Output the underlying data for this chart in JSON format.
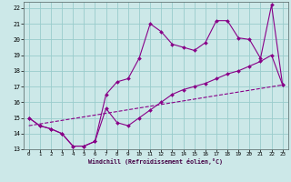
{
  "xlabel": "Windchill (Refroidissement éolien,°C)",
  "bg_color": "#cce8e8",
  "grid_color": "#99cccc",
  "line_color": "#880088",
  "xmin": -0.5,
  "xmax": 23.5,
  "ymin": 13,
  "ymax": 22.4,
  "x_ticks": [
    0,
    1,
    2,
    3,
    4,
    5,
    6,
    7,
    8,
    9,
    10,
    11,
    12,
    13,
    14,
    15,
    16,
    17,
    18,
    19,
    20,
    21,
    22,
    23
  ],
  "y_ticks": [
    13,
    14,
    15,
    16,
    17,
    18,
    19,
    20,
    21,
    22
  ],
  "series1_x": [
    0,
    1,
    2,
    3,
    4,
    5,
    6,
    7,
    8,
    9,
    10,
    11,
    12,
    13,
    14,
    15,
    16,
    17,
    18,
    19,
    20,
    21,
    22,
    23
  ],
  "series1_y": [
    15.0,
    14.5,
    14.3,
    14.0,
    13.2,
    13.2,
    13.5,
    15.6,
    14.7,
    14.5,
    15.0,
    15.5,
    16.0,
    16.5,
    16.8,
    17.0,
    17.2,
    17.5,
    17.8,
    18.0,
    18.3,
    18.6,
    19.0,
    17.1
  ],
  "series2_x": [
    0,
    1,
    2,
    3,
    4,
    5,
    6,
    7,
    8,
    9,
    10,
    11,
    12,
    13,
    14,
    15,
    16,
    17,
    18,
    19,
    20,
    21,
    22,
    23
  ],
  "series2_y": [
    15.0,
    14.5,
    14.3,
    14.0,
    13.2,
    13.2,
    13.5,
    16.5,
    17.3,
    17.5,
    18.8,
    21.0,
    20.5,
    19.7,
    19.5,
    19.3,
    19.8,
    21.2,
    21.2,
    20.1,
    20.0,
    18.8,
    22.2,
    17.1
  ],
  "series3_x": [
    0,
    23
  ],
  "series3_y": [
    14.5,
    17.1
  ]
}
